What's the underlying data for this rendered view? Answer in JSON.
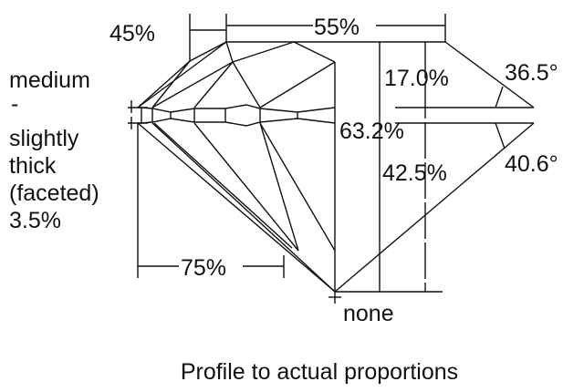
{
  "diagram": {
    "labels": {
      "star_length": "45%",
      "table": "55%",
      "crown_height": "17.0%",
      "crown_angle": "36.5°",
      "total_depth": "63.2%",
      "pavilion_depth": "42.5%",
      "pavilion_angle": "40.6°",
      "lower_half": "75%",
      "culet": "none",
      "girdle": [
        "medium",
        "-",
        "slightly",
        "thick",
        "(faceted)",
        "3.5%"
      ]
    },
    "caption": "Profile to actual proportions",
    "line_color": "#111111"
  }
}
